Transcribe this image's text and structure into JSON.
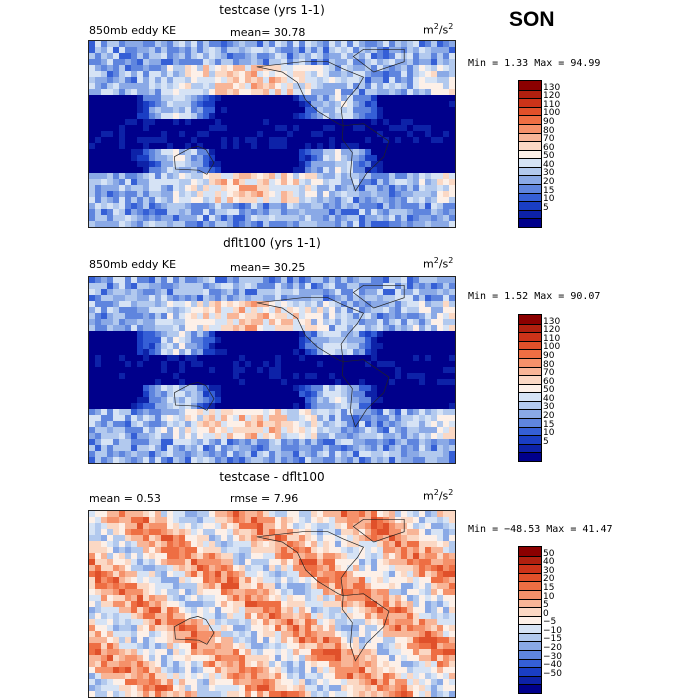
{
  "season": "SON",
  "panels": [
    {
      "title": "testcase (yrs 1-1)",
      "left_label": "850mb eddy KE",
      "stat_label": "mean=  30.78",
      "units_base": "m",
      "units_sup1": "2",
      "units_mid": "/s",
      "units_sup2": "2",
      "minmax": "Min =   1.33 Max =  94.99",
      "colorbar": {
        "labels": [
          "130",
          "120",
          "110",
          "100",
          "90",
          "80",
          "70",
          "60",
          "50",
          "40",
          "30",
          "20",
          "15",
          "10",
          "5"
        ],
        "colors": [
          "#8b0000",
          "#b0200f",
          "#cc3319",
          "#e0502a",
          "#ee6e43",
          "#f5916a",
          "#f8b597",
          "#fbd8c4",
          "#fdf0e8",
          "#d6e3f5",
          "#b2c9ee",
          "#8aa9e6",
          "#5f85de",
          "#355fd6",
          "#1a3ec4",
          "#0d22a8",
          "#00008b"
        ]
      }
    },
    {
      "title": "dflt100 (yrs 1-1)",
      "left_label": "850mb eddy KE",
      "stat_label": "mean=  30.25",
      "units_base": "m",
      "units_sup1": "2",
      "units_mid": "/s",
      "units_sup2": "2",
      "minmax": "Min =   1.52 Max =  90.07",
      "colorbar": {
        "labels": [
          "130",
          "120",
          "110",
          "100",
          "90",
          "80",
          "70",
          "60",
          "50",
          "40",
          "30",
          "20",
          "15",
          "10",
          "5"
        ],
        "colors": [
          "#8b0000",
          "#b0200f",
          "#cc3319",
          "#e0502a",
          "#ee6e43",
          "#f5916a",
          "#f8b597",
          "#fbd8c4",
          "#fdf0e8",
          "#d6e3f5",
          "#b2c9ee",
          "#8aa9e6",
          "#5f85de",
          "#355fd6",
          "#1a3ec4",
          "#0d22a8",
          "#00008b"
        ]
      }
    },
    {
      "title": "testcase - dflt100",
      "left_label": "mean =   0.53",
      "stat_label": "rmse =   7.96",
      "units_base": "m",
      "units_sup1": "2",
      "units_mid": "/s",
      "units_sup2": "2",
      "minmax": "Min = −48.53 Max =  41.47",
      "colorbar": {
        "labels": [
          "50",
          "40",
          "30",
          "20",
          "15",
          "10",
          "5",
          "0",
          "−5",
          "−10",
          "−15",
          "−20",
          "−30",
          "−40",
          "−50"
        ],
        "colors": [
          "#8b0000",
          "#b0200f",
          "#cc3319",
          "#e0502a",
          "#ee6e43",
          "#f5916a",
          "#f8b597",
          "#fbd8c4",
          "#fdf0e8",
          "#d6e3f5",
          "#b2c9ee",
          "#8aa9e6",
          "#5f85de",
          "#355fd6",
          "#1a3ec4",
          "#0d22a8",
          "#00008b"
        ]
      }
    }
  ],
  "chart_data": [
    {
      "type": "heatmap",
      "title": "testcase (yrs 1-1)",
      "variable": "850mb eddy KE",
      "mean": 30.78,
      "min": 1.33,
      "max": 94.99,
      "units": "m2/s2",
      "levels": [
        5,
        10,
        15,
        20,
        30,
        40,
        50,
        60,
        70,
        80,
        90,
        100,
        110,
        120,
        130
      ],
      "dominant": "low",
      "seed": 11
    },
    {
      "type": "heatmap",
      "title": "dflt100 (yrs 1-1)",
      "variable": "850mb eddy KE",
      "mean": 30.25,
      "min": 1.52,
      "max": 90.07,
      "units": "m2/s2",
      "levels": [
        5,
        10,
        15,
        20,
        30,
        40,
        50,
        60,
        70,
        80,
        90,
        100,
        110,
        120,
        130
      ],
      "dominant": "low",
      "seed": 23
    },
    {
      "type": "heatmap",
      "title": "testcase - dflt100",
      "mean": 0.53,
      "rmse": 7.96,
      "min": -48.53,
      "max": 41.47,
      "units": "m2/s2",
      "levels": [
        -50,
        -40,
        -30,
        -20,
        -15,
        -10,
        -5,
        0,
        5,
        10,
        15,
        20,
        30,
        40,
        50
      ],
      "dominant": "mixed",
      "seed": 37
    }
  ]
}
